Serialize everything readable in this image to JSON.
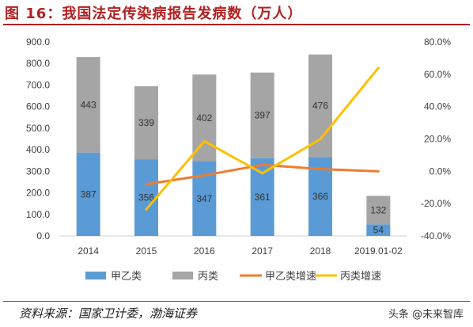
{
  "header": {
    "title": "图 16：我国法定传染病报告发病数（万人）"
  },
  "footer": {
    "source": "资料来源：国家卫计委，渤海证券",
    "watermark": "头条 @未来智库"
  },
  "chart_data": {
    "type": "bar",
    "stacked": true,
    "categories": [
      "2014",
      "2015",
      "2016",
      "2017",
      "2018",
      "2019.01-02"
    ],
    "series": [
      {
        "name": "甲乙类",
        "kind": "bar",
        "axis": "left",
        "color": "#5b9bd5",
        "values": [
          387,
          356,
          347,
          361,
          366,
          54
        ]
      },
      {
        "name": "丙类",
        "kind": "bar",
        "axis": "left",
        "color": "#a5a5a5",
        "values": [
          443,
          339,
          402,
          397,
          476,
          132
        ]
      },
      {
        "name": "甲乙类增速",
        "kind": "line",
        "axis": "right",
        "color": "#ed7d31",
        "values": [
          null,
          -0.08,
          -0.025,
          0.04,
          0.014,
          0.0
        ]
      },
      {
        "name": "丙类增速",
        "kind": "line",
        "axis": "right",
        "color": "#ffc000",
        "values": [
          null,
          -0.235,
          0.186,
          -0.012,
          0.199,
          0.64
        ]
      }
    ],
    "left_axis": {
      "min": 0,
      "max": 900,
      "step": 100,
      "ticks": [
        "0.0",
        "100.0",
        "200.0",
        "300.0",
        "400.0",
        "500.0",
        "600.0",
        "700.0",
        "800.0",
        "900.0"
      ]
    },
    "right_axis": {
      "min": -0.4,
      "max": 0.8,
      "step": 0.2,
      "ticks": [
        "-40.0%",
        "-20.0%",
        "0.0%",
        "20.0%",
        "40.0%",
        "60.0%",
        "80.0%"
      ]
    },
    "legend": {
      "position": "bottom"
    },
    "grid": false
  }
}
